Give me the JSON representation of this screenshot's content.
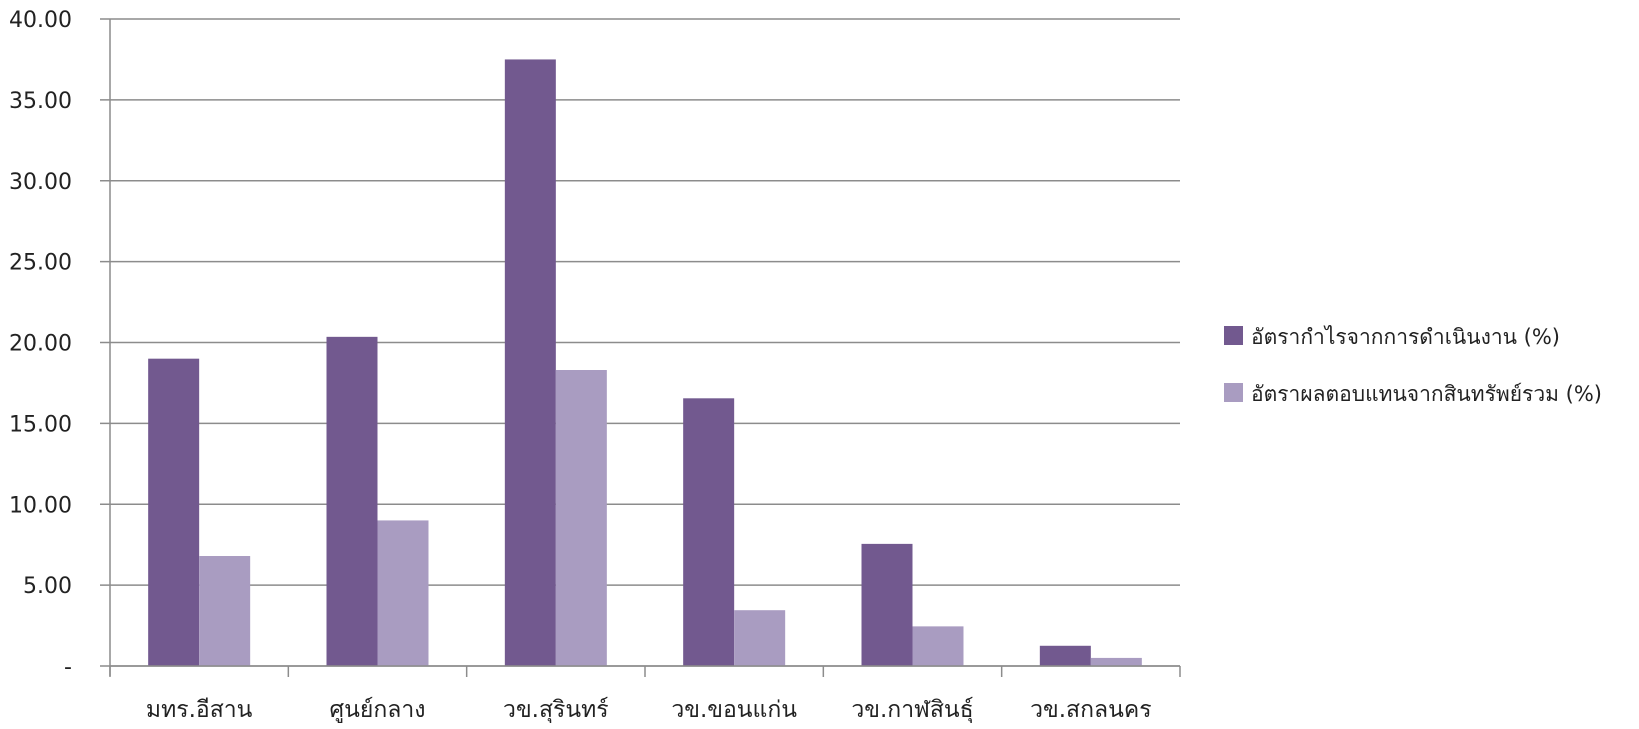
{
  "chart_data": {
    "type": "bar",
    "categories": [
      "มทร.อีสาน",
      "ศูนย์กลาง",
      "วข.สุรินทร์",
      "วข.ขอนแก่น",
      "วข.กาฬสินธุ์",
      "วข.สกลนคร"
    ],
    "series": [
      {
        "name": "อัตรากำไรจากการดำเนินงาน (%)",
        "color": "#72598f",
        "values": [
          19.0,
          20.35,
          37.5,
          16.55,
          7.55,
          1.25
        ]
      },
      {
        "name": "อัตราผลตอบแทนจากสินทรัพย์รวม (%)",
        "color": "#a99cc1",
        "values": [
          6.8,
          9.0,
          18.3,
          3.45,
          2.45,
          0.5
        ]
      }
    ],
    "ylim": [
      0,
      40
    ],
    "yticks": [
      "-",
      "5.00",
      "10.00",
      "15.00",
      "20.00",
      "25.00",
      "30.00",
      "35.00",
      "40.00"
    ],
    "grid": true,
    "legend_position": "right"
  }
}
